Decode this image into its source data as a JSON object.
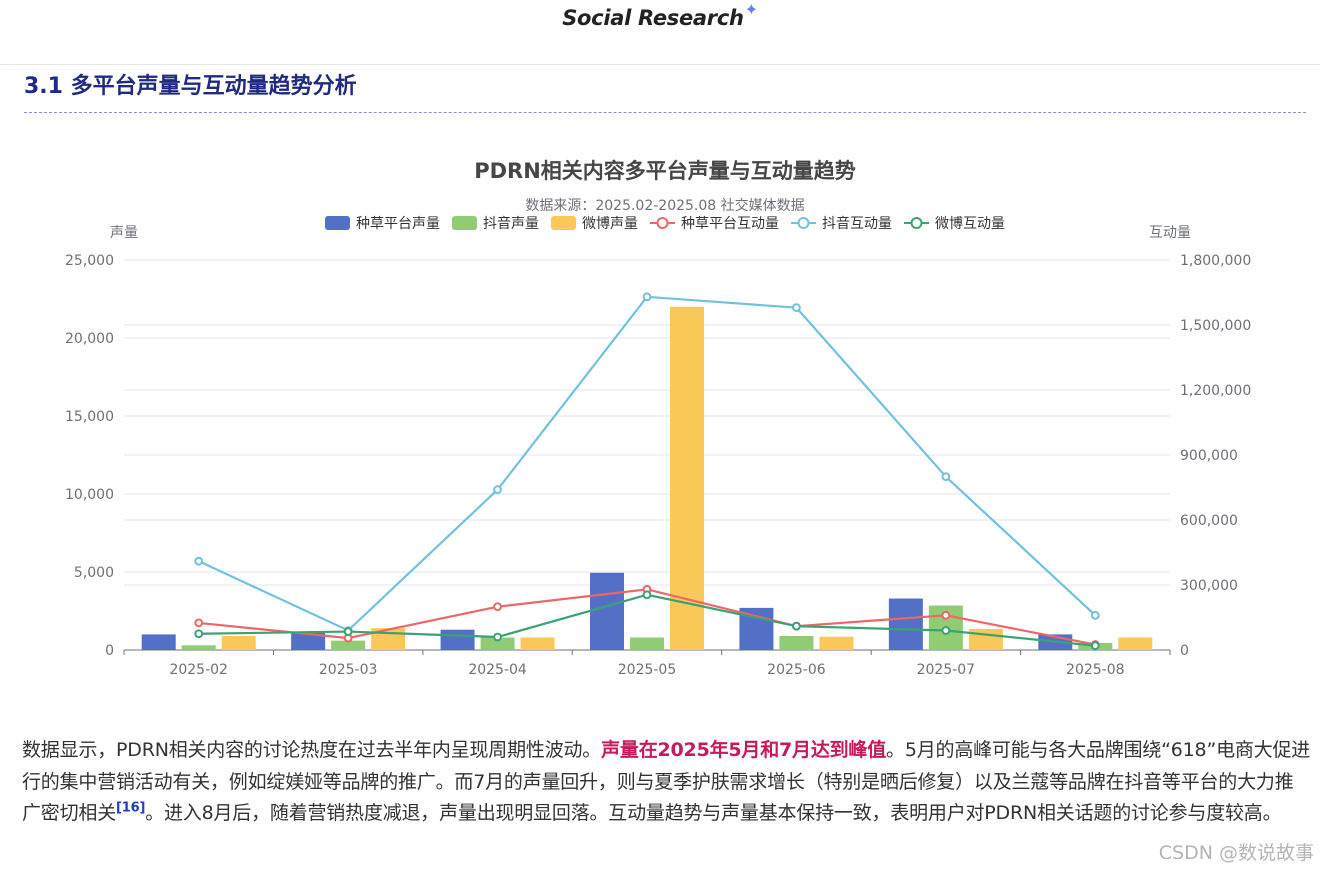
{
  "header": {
    "brand": "Social Research",
    "spark_icon": "✦"
  },
  "section": {
    "title": "3.1 多平台声量与互动量趋势分析"
  },
  "colors": {
    "zhongcao_bar": "#5470c6",
    "douyin_bar": "#91cc75",
    "weibo_bar": "#fac858",
    "zhongcao_line": "#ee6666",
    "douyin_line": "#73c0de",
    "weibo_line": "#3ba272"
  },
  "chart_data": {
    "type": "bar",
    "title": "PDRN相关内容多平台声量与互动量趋势",
    "subtitle": "数据来源：2025.02-2025.08 社交媒体数据",
    "ylabel": "声量",
    "y2label": "互动量",
    "categories": [
      "2025-02",
      "2025-03",
      "2025-04",
      "2025-05",
      "2025-06",
      "2025-07",
      "2025-08"
    ],
    "ylim": [
      0,
      25000
    ],
    "y2lim": [
      0,
      1800000
    ],
    "yticks": [
      "0",
      "5,000",
      "10,000",
      "15,000",
      "20,000",
      "25,000"
    ],
    "y2ticks": [
      "0",
      "300,000",
      "600,000",
      "900,000",
      "1,200,000",
      "1,500,000",
      "1,800,000"
    ],
    "legend_position": "top-center",
    "grid": true,
    "series": [
      {
        "name": "种草平台声量",
        "type": "bar",
        "axis": "left",
        "color": "#5470c6",
        "values": [
          1000,
          1100,
          1300,
          4950,
          2700,
          3300,
          1000
        ]
      },
      {
        "name": "抖音声量",
        "type": "bar",
        "axis": "left",
        "color": "#91cc75",
        "values": [
          300,
          600,
          800,
          800,
          900,
          2850,
          450
        ]
      },
      {
        "name": "微博声量",
        "type": "bar",
        "axis": "left",
        "color": "#fac858",
        "values": [
          900,
          1400,
          800,
          22000,
          850,
          1350,
          800
        ]
      },
      {
        "name": "种草平台互动量",
        "type": "line",
        "axis": "right",
        "color": "#ee6666",
        "values": [
          125000,
          55000,
          200000,
          280000,
          110000,
          160000,
          25000
        ]
      },
      {
        "name": "抖音互动量",
        "type": "line",
        "axis": "right",
        "color": "#73c0de",
        "values": [
          410000,
          90000,
          740000,
          1630000,
          1580000,
          800000,
          160000
        ]
      },
      {
        "name": "微博互动量",
        "type": "line",
        "axis": "right",
        "color": "#3ba272",
        "values": [
          75000,
          85000,
          60000,
          255000,
          110000,
          90000,
          20000
        ]
      }
    ]
  },
  "paragraph": {
    "part1": "数据显示，PDRN相关内容的讨论热度在过去半年内呈现周期性波动。",
    "highlight": "声量在2025年5月和7月达到峰值",
    "part2": "。5月的高峰可能与各大品牌围绕“618”电商大促进行的集中营销活动有关，例如绽媄娅等品牌的推广。而7月的声量回升，则与夏季护肤需求增长（特别是晒后修复）以及兰蔻等品牌在抖音等平台的大力推广密切相关",
    "ref": "[16]",
    "part3": "。进入8月后，随着营销热度减退，声量出现明显回落。互动量趋势与声量基本保持一致，表明用户对PDRN相关话题的讨论参与度较高。"
  },
  "watermark": "CSDN @数说故事"
}
